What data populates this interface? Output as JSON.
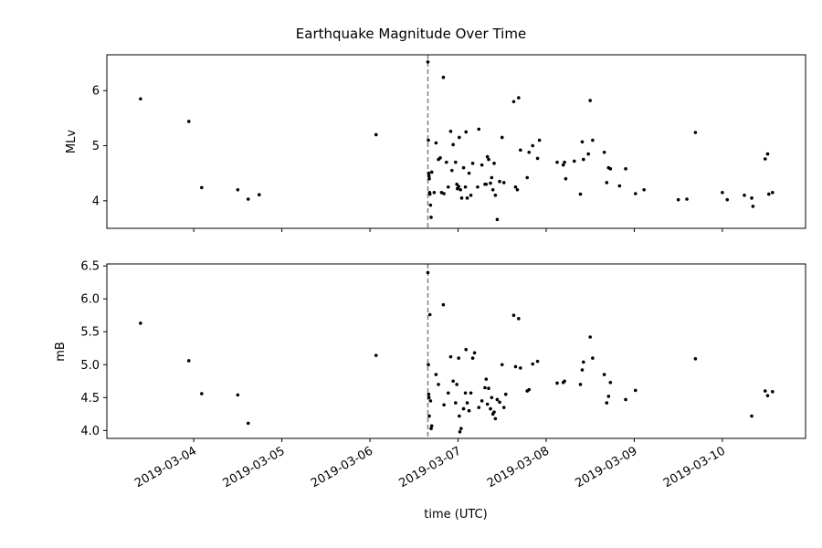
{
  "chart_data": {
    "type": "scatter",
    "title": "Earthquake Magnitude Over Time",
    "xlabel": "time (UTC)",
    "x_ticks": [
      "2019-03-04",
      "2019-03-05",
      "2019-03-06",
      "2019-03-07",
      "2019-03-08",
      "2019-03-09",
      "2019-03-10"
    ],
    "xlim": [
      "2019-03-03 00:20",
      "2019-03-10 22:40"
    ],
    "reference_line": {
      "x": "2019-03-06 15:47",
      "style": "dashed",
      "color": "#808080"
    },
    "marker_color": "#000000",
    "panels": [
      {
        "ylabel": "MLv",
        "ylim": [
          3.5,
          6.65
        ],
        "y_ticks": [
          "4",
          "5",
          "6"
        ],
        "points": [
          [
            "2019-03-03 09:30",
            5.85
          ],
          [
            "2019-03-03 22:40",
            5.44
          ],
          [
            "2019-03-04 02:10",
            4.24
          ],
          [
            "2019-03-04 12:00",
            4.2
          ],
          [
            "2019-03-04 14:50",
            4.03
          ],
          [
            "2019-03-04 17:50",
            4.11
          ],
          [
            "2019-03-06 01:40",
            5.2
          ],
          [
            "2019-03-06 15:47",
            6.52
          ],
          [
            "2019-03-06 15:55",
            5.1
          ],
          [
            "2019-03-06 16:00",
            4.5
          ],
          [
            "2019-03-06 16:05",
            4.45
          ],
          [
            "2019-03-06 16:10",
            4.4
          ],
          [
            "2019-03-06 16:15",
            4.15
          ],
          [
            "2019-03-06 16:20",
            4.12
          ],
          [
            "2019-03-06 16:30",
            3.92
          ],
          [
            "2019-03-06 16:40",
            3.7
          ],
          [
            "2019-03-06 16:50",
            4.52
          ],
          [
            "2019-03-06 17:30",
            4.15
          ],
          [
            "2019-03-06 18:00",
            5.05
          ],
          [
            "2019-03-06 18:40",
            4.75
          ],
          [
            "2019-03-06 19:10",
            4.78
          ],
          [
            "2019-03-06 19:30",
            4.15
          ],
          [
            "2019-03-06 20:00",
            6.24
          ],
          [
            "2019-03-06 20:10",
            4.13
          ],
          [
            "2019-03-06 20:50",
            4.7
          ],
          [
            "2019-03-06 21:20",
            4.25
          ],
          [
            "2019-03-06 22:00",
            5.26
          ],
          [
            "2019-03-06 22:20",
            4.55
          ],
          [
            "2019-03-06 22:40",
            5.02
          ],
          [
            "2019-03-06 23:20",
            4.7
          ],
          [
            "2019-03-06 23:40",
            4.3
          ],
          [
            "2019-03-06 23:50",
            4.22
          ],
          [
            "2019-03-07 00:10",
            4.26
          ],
          [
            "2019-03-07 00:20",
            5.15
          ],
          [
            "2019-03-07 00:40",
            4.2
          ],
          [
            "2019-03-07 01:00",
            4.05
          ],
          [
            "2019-03-07 01:30",
            4.6
          ],
          [
            "2019-03-07 02:00",
            4.25
          ],
          [
            "2019-03-07 02:10",
            5.25
          ],
          [
            "2019-03-07 02:30",
            4.05
          ],
          [
            "2019-03-07 03:00",
            4.5
          ],
          [
            "2019-03-07 03:30",
            4.1
          ],
          [
            "2019-03-07 04:00",
            4.68
          ],
          [
            "2019-03-07 05:20",
            4.25
          ],
          [
            "2019-03-07 05:40",
            5.3
          ],
          [
            "2019-03-07 06:30",
            4.65
          ],
          [
            "2019-03-07 07:20",
            4.3
          ],
          [
            "2019-03-07 07:40",
            4.3
          ],
          [
            "2019-03-07 08:00",
            4.8
          ],
          [
            "2019-03-07 08:20",
            4.75
          ],
          [
            "2019-03-07 08:50",
            4.32
          ],
          [
            "2019-03-07 09:10",
            4.42
          ],
          [
            "2019-03-07 09:30",
            4.2
          ],
          [
            "2019-03-07 09:50",
            4.68
          ],
          [
            "2019-03-07 10:10",
            4.1
          ],
          [
            "2019-03-07 10:40",
            3.66
          ],
          [
            "2019-03-07 11:20",
            4.35
          ],
          [
            "2019-03-07 12:00",
            5.15
          ],
          [
            "2019-03-07 12:30",
            4.33
          ],
          [
            "2019-03-07 15:10",
            5.8
          ],
          [
            "2019-03-07 15:40",
            4.25
          ],
          [
            "2019-03-07 16:10",
            4.2
          ],
          [
            "2019-03-07 16:30",
            5.87
          ],
          [
            "2019-03-07 17:00",
            4.92
          ],
          [
            "2019-03-07 18:50",
            4.42
          ],
          [
            "2019-03-07 19:20",
            4.88
          ],
          [
            "2019-03-07 20:20",
            5.0
          ],
          [
            "2019-03-07 21:40",
            4.77
          ],
          [
            "2019-03-07 22:10",
            5.1
          ],
          [
            "2019-03-08 03:00",
            4.7
          ],
          [
            "2019-03-08 04:40",
            4.65
          ],
          [
            "2019-03-08 05:00",
            4.7
          ],
          [
            "2019-03-08 05:20",
            4.4
          ],
          [
            "2019-03-08 07:40",
            4.72
          ],
          [
            "2019-03-08 09:20",
            4.12
          ],
          [
            "2019-03-08 09:50",
            5.07
          ],
          [
            "2019-03-08 10:10",
            4.75
          ],
          [
            "2019-03-08 11:30",
            4.85
          ],
          [
            "2019-03-08 12:00",
            5.82
          ],
          [
            "2019-03-08 12:40",
            5.1
          ],
          [
            "2019-03-08 15:50",
            4.88
          ],
          [
            "2019-03-08 16:30",
            4.33
          ],
          [
            "2019-03-08 17:00",
            4.6
          ],
          [
            "2019-03-08 17:30",
            4.58
          ],
          [
            "2019-03-08 20:00",
            4.27
          ],
          [
            "2019-03-08 21:40",
            4.58
          ],
          [
            "2019-03-09 00:20",
            4.13
          ],
          [
            "2019-03-09 02:40",
            4.2
          ],
          [
            "2019-03-09 12:00",
            4.02
          ],
          [
            "2019-03-09 14:20",
            4.03
          ],
          [
            "2019-03-09 16:40",
            5.24
          ],
          [
            "2019-03-10 00:00",
            4.15
          ],
          [
            "2019-03-10 01:20",
            4.02
          ],
          [
            "2019-03-10 06:00",
            4.1
          ],
          [
            "2019-03-10 08:00",
            4.05
          ],
          [
            "2019-03-10 08:20",
            3.9
          ],
          [
            "2019-03-10 11:40",
            4.76
          ],
          [
            "2019-03-10 12:20",
            4.85
          ],
          [
            "2019-03-10 12:40",
            4.12
          ],
          [
            "2019-03-10 13:40",
            4.15
          ]
        ]
      },
      {
        "ylabel": "mB",
        "ylim": [
          3.88,
          6.53
        ],
        "y_ticks": [
          "4.0",
          "4.5",
          "5.0",
          "5.5",
          "6.0",
          "6.5"
        ],
        "points": [
          [
            "2019-03-03 09:30",
            5.63
          ],
          [
            "2019-03-03 22:40",
            5.06
          ],
          [
            "2019-03-04 02:10",
            4.56
          ],
          [
            "2019-03-04 12:00",
            4.54
          ],
          [
            "2019-03-04 14:50",
            4.11
          ],
          [
            "2019-03-06 01:40",
            5.14
          ],
          [
            "2019-03-06 15:47",
            6.4
          ],
          [
            "2019-03-06 15:55",
            5.0
          ],
          [
            "2019-03-06 16:00",
            4.55
          ],
          [
            "2019-03-06 16:05",
            4.5
          ],
          [
            "2019-03-06 16:10",
            4.22
          ],
          [
            "2019-03-06 16:20",
            5.76
          ],
          [
            "2019-03-06 16:30",
            4.45
          ],
          [
            "2019-03-06 16:40",
            4.03
          ],
          [
            "2019-03-06 16:50",
            4.07
          ],
          [
            "2019-03-06 18:00",
            4.85
          ],
          [
            "2019-03-06 18:40",
            4.7
          ],
          [
            "2019-03-06 20:00",
            5.91
          ],
          [
            "2019-03-06 20:10",
            4.39
          ],
          [
            "2019-03-06 21:20",
            4.57
          ],
          [
            "2019-03-06 22:00",
            5.12
          ],
          [
            "2019-03-06 22:40",
            4.75
          ],
          [
            "2019-03-06 23:20",
            4.42
          ],
          [
            "2019-03-06 23:40",
            4.7
          ],
          [
            "2019-03-07 00:10",
            5.1
          ],
          [
            "2019-03-07 00:20",
            4.22
          ],
          [
            "2019-03-07 00:30",
            3.98
          ],
          [
            "2019-03-07 00:50",
            4.03
          ],
          [
            "2019-03-07 01:30",
            4.33
          ],
          [
            "2019-03-07 02:00",
            4.57
          ],
          [
            "2019-03-07 02:10",
            5.23
          ],
          [
            "2019-03-07 02:30",
            4.42
          ],
          [
            "2019-03-07 03:00",
            4.3
          ],
          [
            "2019-03-07 03:30",
            4.57
          ],
          [
            "2019-03-07 04:00",
            5.1
          ],
          [
            "2019-03-07 04:30",
            5.18
          ],
          [
            "2019-03-07 05:40",
            4.35
          ],
          [
            "2019-03-07 06:30",
            4.45
          ],
          [
            "2019-03-07 07:20",
            4.65
          ],
          [
            "2019-03-07 07:40",
            4.78
          ],
          [
            "2019-03-07 08:00",
            4.4
          ],
          [
            "2019-03-07 08:20",
            4.64
          ],
          [
            "2019-03-07 08:50",
            4.33
          ],
          [
            "2019-03-07 09:10",
            4.5
          ],
          [
            "2019-03-07 09:30",
            4.25
          ],
          [
            "2019-03-07 09:50",
            4.28
          ],
          [
            "2019-03-07 10:10",
            4.18
          ],
          [
            "2019-03-07 10:40",
            4.47
          ],
          [
            "2019-03-07 11:20",
            4.43
          ],
          [
            "2019-03-07 12:00",
            5.0
          ],
          [
            "2019-03-07 12:30",
            4.35
          ],
          [
            "2019-03-07 13:00",
            4.55
          ],
          [
            "2019-03-07 15:10",
            5.75
          ],
          [
            "2019-03-07 15:40",
            4.97
          ],
          [
            "2019-03-07 16:30",
            5.7
          ],
          [
            "2019-03-07 17:00",
            4.95
          ],
          [
            "2019-03-07 18:50",
            4.6
          ],
          [
            "2019-03-07 19:20",
            4.62
          ],
          [
            "2019-03-07 20:20",
            5.01
          ],
          [
            "2019-03-07 21:40",
            5.05
          ],
          [
            "2019-03-08 03:00",
            4.72
          ],
          [
            "2019-03-08 04:40",
            4.73
          ],
          [
            "2019-03-08 05:00",
            4.75
          ],
          [
            "2019-03-08 09:20",
            4.7
          ],
          [
            "2019-03-08 09:50",
            4.92
          ],
          [
            "2019-03-08 10:10",
            5.04
          ],
          [
            "2019-03-08 12:00",
            5.42
          ],
          [
            "2019-03-08 12:40",
            5.1
          ],
          [
            "2019-03-08 15:50",
            4.85
          ],
          [
            "2019-03-08 16:30",
            4.42
          ],
          [
            "2019-03-08 17:00",
            4.52
          ],
          [
            "2019-03-08 17:30",
            4.73
          ],
          [
            "2019-03-08 21:40",
            4.47
          ],
          [
            "2019-03-09 00:20",
            4.61
          ],
          [
            "2019-03-09 16:40",
            5.09
          ],
          [
            "2019-03-10 08:00",
            4.22
          ],
          [
            "2019-03-10 11:40",
            4.6
          ],
          [
            "2019-03-10 12:20",
            4.53
          ],
          [
            "2019-03-10 13:40",
            4.59
          ]
        ]
      }
    ]
  }
}
